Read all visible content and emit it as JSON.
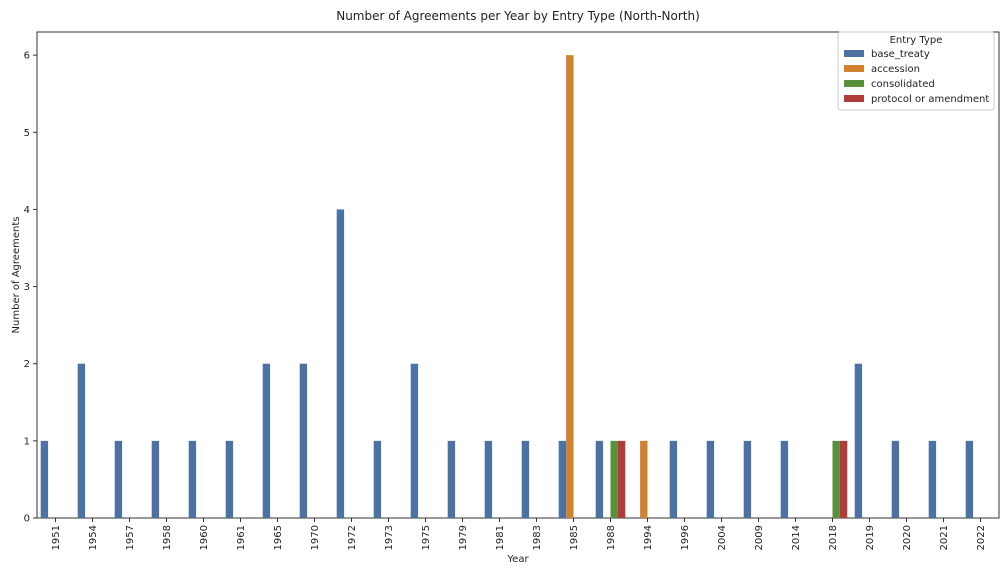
{
  "chart_data": {
    "type": "bar",
    "title": "Number of Agreements per Year by Entry Type (North-North)",
    "xlabel": "Year",
    "ylabel": "Number of Agreements",
    "ylim": [
      0,
      6.3
    ],
    "yticks": [
      0,
      1,
      2,
      3,
      4,
      5,
      6
    ],
    "grid": false,
    "legend": {
      "title": "Entry Type",
      "placement": "top-right"
    },
    "categories": [
      "1951",
      "1954",
      "1957",
      "1958",
      "1960",
      "1961",
      "1965",
      "1970",
      "1972",
      "1973",
      "1975",
      "1979",
      "1981",
      "1983",
      "1985",
      "1988",
      "1994",
      "1996",
      "2004",
      "2009",
      "2014",
      "2018",
      "2019",
      "2020",
      "2021",
      "2022"
    ],
    "series": [
      {
        "name": "base_treaty",
        "color": "#4c72a4",
        "values": [
          1,
          2,
          1,
          1,
          1,
          1,
          2,
          2,
          4,
          1,
          2,
          1,
          1,
          1,
          1,
          1,
          0,
          1,
          1,
          1,
          1,
          0,
          2,
          1,
          1,
          1
        ]
      },
      {
        "name": "accession",
        "color": "#d1822e",
        "values": [
          0,
          0,
          0,
          0,
          0,
          0,
          0,
          0,
          0,
          0,
          0,
          0,
          0,
          0,
          6,
          0,
          1,
          0,
          0,
          0,
          0,
          0,
          0,
          0,
          0,
          0
        ]
      },
      {
        "name": "consolidated",
        "color": "#5a8f3c",
        "values": [
          0,
          0,
          0,
          0,
          0,
          0,
          0,
          0,
          0,
          0,
          0,
          0,
          0,
          0,
          0,
          1,
          0,
          0,
          0,
          0,
          0,
          1,
          0,
          0,
          0,
          0
        ]
      },
      {
        "name": "protocol or amendment",
        "color": "#b03d3a",
        "values": [
          0,
          0,
          0,
          0,
          0,
          0,
          0,
          0,
          0,
          0,
          0,
          0,
          0,
          0,
          0,
          1,
          0,
          0,
          0,
          0,
          0,
          1,
          0,
          0,
          0,
          0
        ]
      }
    ]
  }
}
